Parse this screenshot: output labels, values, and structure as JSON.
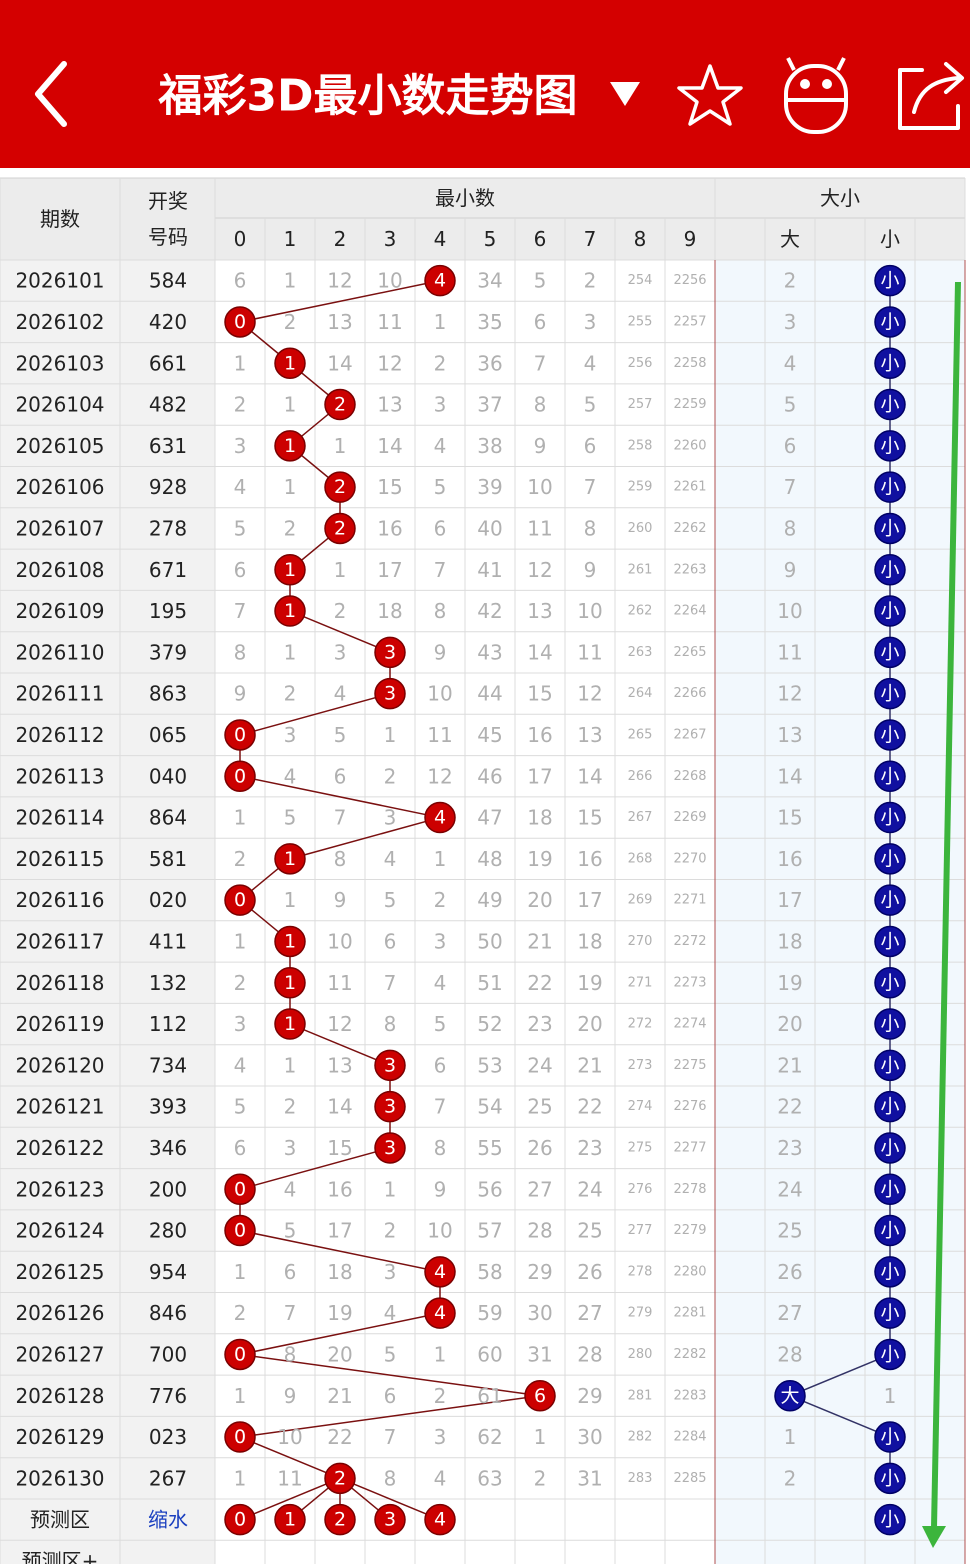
{
  "header": {
    "title": "福彩3D最小数走势图"
  },
  "table": {
    "headers": {
      "period": "期数",
      "number": "开奖号码",
      "min_group": "最小数",
      "digits": [
        0,
        1,
        2,
        3,
        4,
        5,
        6,
        7,
        8,
        9
      ],
      "size_group": "大小",
      "big": "大",
      "small": "小"
    },
    "rows": [
      {
        "period": "2026101",
        "number": "584",
        "cells": [
          6,
          1,
          12,
          10,
          4,
          34,
          5,
          2,
          254,
          2256
        ],
        "size": [
          2,
          "小"
        ]
      },
      {
        "period": "2026102",
        "number": "420",
        "cells": [
          0,
          2,
          13,
          11,
          1,
          35,
          6,
          3,
          255,
          2257
        ],
        "size": [
          3,
          "小"
        ]
      },
      {
        "period": "2026103",
        "number": "661",
        "cells": [
          1,
          1,
          14,
          12,
          2,
          36,
          7,
          4,
          256,
          2258
        ],
        "size": [
          4,
          "小"
        ]
      },
      {
        "period": "2026104",
        "number": "482",
        "cells": [
          2,
          1,
          2,
          13,
          3,
          37,
          8,
          5,
          257,
          2259
        ],
        "size": [
          5,
          "小"
        ]
      },
      {
        "period": "2026105",
        "number": "631",
        "cells": [
          3,
          1,
          1,
          14,
          4,
          38,
          9,
          6,
          258,
          2260
        ],
        "size": [
          6,
          "小"
        ]
      },
      {
        "period": "2026106",
        "number": "928",
        "cells": [
          4,
          1,
          2,
          15,
          5,
          39,
          10,
          7,
          259,
          2261
        ],
        "size": [
          7,
          "小"
        ]
      },
      {
        "period": "2026107",
        "number": "278",
        "cells": [
          5,
          2,
          2,
          16,
          6,
          40,
          11,
          8,
          260,
          2262
        ],
        "size": [
          8,
          "小"
        ]
      },
      {
        "period": "2026108",
        "number": "671",
        "cells": [
          6,
          1,
          1,
          17,
          7,
          41,
          12,
          9,
          261,
          2263
        ],
        "size": [
          9,
          "小"
        ]
      },
      {
        "period": "2026109",
        "number": "195",
        "cells": [
          7,
          1,
          2,
          18,
          8,
          42,
          13,
          10,
          262,
          2264
        ],
        "size": [
          10,
          "小"
        ]
      },
      {
        "period": "2026110",
        "number": "379",
        "cells": [
          8,
          1,
          3,
          3,
          9,
          43,
          14,
          11,
          263,
          2265
        ],
        "size": [
          11,
          "小"
        ]
      },
      {
        "period": "2026111",
        "number": "863",
        "cells": [
          9,
          2,
          4,
          3,
          10,
          44,
          15,
          12,
          264,
          2266
        ],
        "size": [
          12,
          "小"
        ]
      },
      {
        "period": "2026112",
        "number": "065",
        "cells": [
          0,
          3,
          5,
          1,
          11,
          45,
          16,
          13,
          265,
          2267
        ],
        "size": [
          13,
          "小"
        ]
      },
      {
        "period": "2026113",
        "number": "040",
        "cells": [
          0,
          4,
          6,
          2,
          12,
          46,
          17,
          14,
          266,
          2268
        ],
        "size": [
          14,
          "小"
        ]
      },
      {
        "period": "2026114",
        "number": "864",
        "cells": [
          1,
          5,
          7,
          3,
          4,
          47,
          18,
          15,
          267,
          2269
        ],
        "size": [
          15,
          "小"
        ]
      },
      {
        "period": "2026115",
        "number": "581",
        "cells": [
          2,
          1,
          8,
          4,
          1,
          48,
          19,
          16,
          268,
          2270
        ],
        "size": [
          16,
          "小"
        ]
      },
      {
        "period": "2026116",
        "number": "020",
        "cells": [
          0,
          1,
          9,
          5,
          2,
          49,
          20,
          17,
          269,
          2271
        ],
        "size": [
          17,
          "小"
        ]
      },
      {
        "period": "2026117",
        "number": "411",
        "cells": [
          1,
          1,
          10,
          6,
          3,
          50,
          21,
          18,
          270,
          2272
        ],
        "size": [
          18,
          "小"
        ]
      },
      {
        "period": "2026118",
        "number": "132",
        "cells": [
          2,
          1,
          11,
          7,
          4,
          51,
          22,
          19,
          271,
          2273
        ],
        "size": [
          19,
          "小"
        ]
      },
      {
        "period": "2026119",
        "number": "112",
        "cells": [
          3,
          1,
          12,
          8,
          5,
          52,
          23,
          20,
          272,
          2274
        ],
        "size": [
          20,
          "小"
        ]
      },
      {
        "period": "2026120",
        "number": "734",
        "cells": [
          4,
          1,
          13,
          3,
          6,
          53,
          24,
          21,
          273,
          2275
        ],
        "size": [
          21,
          "小"
        ]
      },
      {
        "period": "2026121",
        "number": "393",
        "cells": [
          5,
          2,
          14,
          3,
          7,
          54,
          25,
          22,
          274,
          2276
        ],
        "size": [
          22,
          "小"
        ]
      },
      {
        "period": "2026122",
        "number": "346",
        "cells": [
          6,
          3,
          15,
          3,
          8,
          55,
          26,
          23,
          275,
          2277
        ],
        "size": [
          23,
          "小"
        ]
      },
      {
        "period": "2026123",
        "number": "200",
        "cells": [
          0,
          4,
          16,
          1,
          9,
          56,
          27,
          24,
          276,
          2278
        ],
        "size": [
          24,
          "小"
        ]
      },
      {
        "period": "2026124",
        "number": "280",
        "cells": [
          0,
          5,
          17,
          2,
          10,
          57,
          28,
          25,
          277,
          2279
        ],
        "size": [
          25,
          "小"
        ]
      },
      {
        "period": "2026125",
        "number": "954",
        "cells": [
          1,
          6,
          18,
          3,
          4,
          58,
          29,
          26,
          278,
          2280
        ],
        "size": [
          26,
          "小"
        ]
      },
      {
        "period": "2026126",
        "number": "846",
        "cells": [
          2,
          7,
          19,
          4,
          4,
          59,
          30,
          27,
          279,
          2281
        ],
        "size": [
          27,
          "小"
        ]
      },
      {
        "period": "2026127",
        "number": "700",
        "cells": [
          0,
          8,
          20,
          5,
          1,
          60,
          31,
          28,
          280,
          2282
        ],
        "size": [
          28,
          "小"
        ]
      },
      {
        "period": "2026128",
        "number": "776",
        "cells": [
          1,
          9,
          21,
          6,
          2,
          61,
          6,
          29,
          281,
          2283
        ],
        "size": [
          "大",
          1
        ]
      },
      {
        "period": "2026129",
        "number": "023",
        "cells": [
          0,
          10,
          22,
          7,
          3,
          62,
          1,
          30,
          282,
          2284
        ],
        "size": [
          1,
          "小"
        ]
      },
      {
        "period": "2026130",
        "number": "267",
        "cells": [
          1,
          11,
          2,
          8,
          4,
          63,
          2,
          31,
          283,
          2285
        ],
        "size": [
          2,
          "小"
        ]
      }
    ],
    "forecast": {
      "label": "预测区",
      "method": "缩水",
      "picks": [
        0,
        1,
        2,
        3,
        4
      ],
      "size": "小"
    },
    "more_label": "预测区+"
  }
}
